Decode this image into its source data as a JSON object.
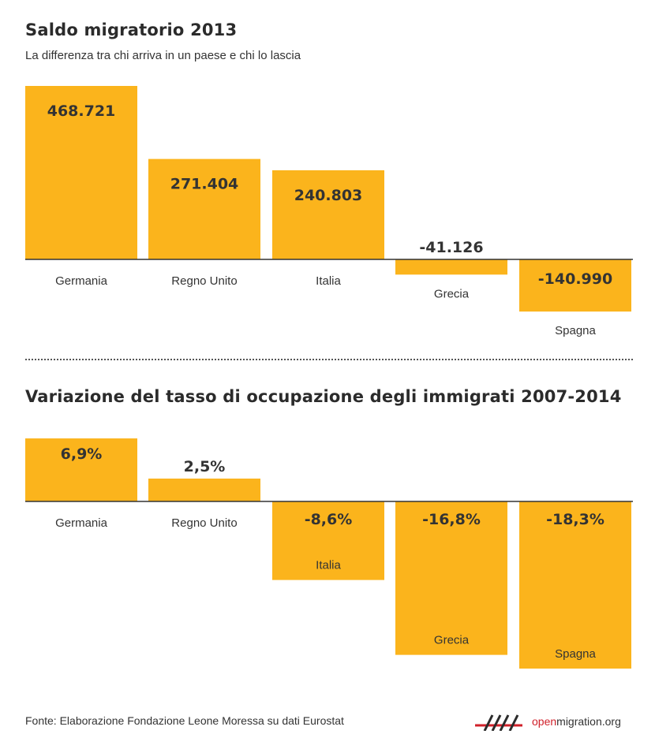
{
  "chart_data": [
    {
      "type": "bar",
      "title": "Saldo migratorio 2013",
      "subtitle": "La differenza tra chi arriva in un paese e chi lo lascia",
      "categories": [
        "Germania",
        "Regno Unito",
        "Italia",
        "Grecia",
        "Spagna"
      ],
      "values": [
        468721,
        271404,
        240803,
        -41126,
        -140990
      ],
      "value_labels": [
        "468.721",
        "271.404",
        "240.803",
        "-41.126",
        "-140.990"
      ],
      "xlabel": "",
      "ylabel": "",
      "grid": false,
      "bar_color": "#fbb41c"
    },
    {
      "type": "bar",
      "title": "Variazione del tasso di occupazione degli immigrati 2007-2014",
      "categories": [
        "Germania",
        "Regno Unito",
        "Italia",
        "Grecia",
        "Spagna"
      ],
      "values": [
        6.9,
        2.5,
        -8.6,
        -16.8,
        -18.3
      ],
      "value_labels": [
        "6,9%",
        "2,5%",
        "-8,6%",
        "-16,8%",
        "-18,3%"
      ],
      "xlabel": "",
      "ylabel": "",
      "grid": false,
      "bar_color": "#fbb41c"
    }
  ],
  "footer": {
    "source": "Fonte: Elaborazione Fondazione Leone Moressa su dati Eurostat",
    "brand_prefix": "open",
    "brand_suffix": "migration.org",
    "brand_color": "#d0202a"
  }
}
